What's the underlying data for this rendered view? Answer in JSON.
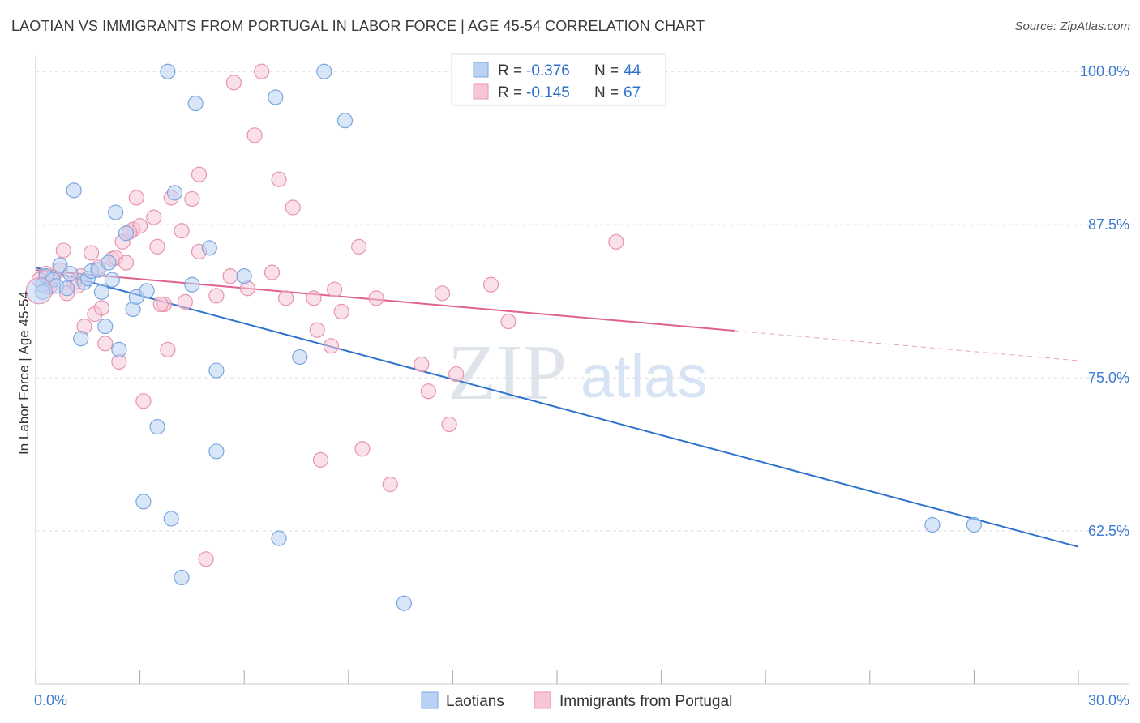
{
  "header": {
    "title": "LAOTIAN VS IMMIGRANTS FROM PORTUGAL IN LABOR FORCE | AGE 45-54 CORRELATION CHART",
    "source": "Source: ZipAtlas.com"
  },
  "watermark": {
    "zip": "ZIP",
    "atlas": "atlas"
  },
  "colors": {
    "blue_fill": "#b9d2f3",
    "blue_stroke": "#7aa6e0",
    "blue_line": "#2f72cc",
    "pink_fill": "#f6c6d5",
    "pink_stroke": "#e893b0",
    "pink_line": "#e0618f",
    "grid": "#dddddd",
    "tick_label": "#3d7bd0"
  },
  "chart_data": {
    "type": "scatter",
    "title": "LAOTIAN VS IMMIGRANTS FROM PORTUGAL IN LABOR FORCE | AGE 45-54 CORRELATION CHART",
    "ylabel": "In Labor Force | Age 45-54",
    "xlabel": "",
    "xlim": [
      0,
      30
    ],
    "ylim": [
      50,
      102
    ],
    "x_tick_labels": [
      "0.0%",
      "30.0%"
    ],
    "y_ticks": [
      62.5,
      75.0,
      87.5,
      100.0
    ],
    "y_tick_labels": [
      "62.5%",
      "75.0%",
      "87.5%",
      "100.0%"
    ],
    "grid": true,
    "legend_top": [
      {
        "r_label": "R =",
        "r_value": "-0.376",
        "n_label": "N =",
        "n_value": "44"
      },
      {
        "r_label": "R =",
        "r_value": "-0.145",
        "n_label": "N =",
        "n_value": "67"
      }
    ],
    "series": [
      {
        "name": "Laotians",
        "trend": {
          "x0": 0,
          "y0": 84.0,
          "x1": 30,
          "y1": 61.2,
          "solid_to": 30
        },
        "points": [
          [
            0.2,
            82.6
          ],
          [
            0.3,
            83.3
          ],
          [
            0.5,
            83.0
          ],
          [
            0.6,
            82.5
          ],
          [
            0.7,
            84.2
          ],
          [
            0.9,
            82.3
          ],
          [
            1.0,
            83.5
          ],
          [
            1.1,
            90.3
          ],
          [
            1.3,
            78.2
          ],
          [
            1.4,
            82.8
          ],
          [
            1.5,
            83.1
          ],
          [
            1.6,
            83.7
          ],
          [
            1.8,
            83.8
          ],
          [
            1.9,
            82.0
          ],
          [
            2.0,
            79.2
          ],
          [
            2.1,
            84.4
          ],
          [
            2.2,
            83.0
          ],
          [
            2.3,
            88.5
          ],
          [
            2.4,
            77.3
          ],
          [
            2.6,
            86.8
          ],
          [
            2.8,
            80.6
          ],
          [
            2.9,
            81.6
          ],
          [
            3.1,
            64.9
          ],
          [
            3.2,
            82.1
          ],
          [
            3.5,
            71.0
          ],
          [
            3.8,
            100.0
          ],
          [
            3.9,
            63.5
          ],
          [
            4.0,
            90.1
          ],
          [
            4.2,
            58.7
          ],
          [
            4.5,
            82.6
          ],
          [
            4.6,
            97.4
          ],
          [
            5.0,
            85.6
          ],
          [
            5.2,
            75.6
          ],
          [
            5.2,
            69.0
          ],
          [
            6.0,
            83.3
          ],
          [
            6.9,
            97.9
          ],
          [
            7.0,
            61.9
          ],
          [
            7.6,
            76.7
          ],
          [
            8.3,
            100.0
          ],
          [
            8.9,
            96.0
          ],
          [
            10.6,
            56.6
          ],
          [
            25.8,
            63.0
          ],
          [
            27.0,
            63.0
          ],
          [
            0.2,
            82.0
          ]
        ]
      },
      {
        "name": "Immigrants from Portugal",
        "trend": {
          "x0": 0,
          "y0": 83.8,
          "x1": 30,
          "y1": 76.4,
          "solid_to": 20.1
        },
        "points": [
          [
            0.3,
            83.5
          ],
          [
            0.5,
            83.2
          ],
          [
            0.7,
            83.8
          ],
          [
            0.8,
            85.4
          ],
          [
            0.9,
            81.9
          ],
          [
            1.1,
            82.8
          ],
          [
            1.3,
            83.3
          ],
          [
            1.4,
            79.2
          ],
          [
            1.6,
            85.2
          ],
          [
            1.7,
            80.2
          ],
          [
            1.8,
            84.0
          ],
          [
            1.9,
            80.7
          ],
          [
            2.0,
            77.8
          ],
          [
            2.2,
            84.7
          ],
          [
            2.3,
            84.8
          ],
          [
            2.4,
            76.3
          ],
          [
            2.5,
            86.1
          ],
          [
            2.6,
            84.4
          ],
          [
            2.8,
            87.1
          ],
          [
            2.9,
            89.7
          ],
          [
            3.0,
            87.4
          ],
          [
            3.1,
            73.1
          ],
          [
            3.4,
            88.1
          ],
          [
            3.5,
            85.7
          ],
          [
            3.7,
            81.0
          ],
          [
            3.8,
            77.3
          ],
          [
            3.9,
            89.7
          ],
          [
            4.2,
            87.0
          ],
          [
            4.3,
            81.2
          ],
          [
            4.5,
            89.6
          ],
          [
            4.7,
            85.3
          ],
          [
            4.7,
            91.6
          ],
          [
            4.9,
            60.2
          ],
          [
            5.2,
            81.7
          ],
          [
            5.6,
            83.3
          ],
          [
            5.7,
            99.1
          ],
          [
            6.1,
            82.3
          ],
          [
            6.3,
            94.8
          ],
          [
            6.5,
            100.0
          ],
          [
            6.8,
            83.6
          ],
          [
            7.0,
            91.2
          ],
          [
            7.2,
            81.5
          ],
          [
            7.4,
            88.9
          ],
          [
            8.0,
            81.5
          ],
          [
            8.1,
            78.9
          ],
          [
            8.2,
            68.3
          ],
          [
            8.5,
            77.6
          ],
          [
            8.6,
            82.2
          ],
          [
            8.8,
            80.4
          ],
          [
            9.4,
            69.2
          ],
          [
            9.3,
            85.7
          ],
          [
            9.8,
            81.5
          ],
          [
            10.2,
            66.3
          ],
          [
            11.1,
            76.1
          ],
          [
            11.3,
            73.9
          ],
          [
            11.7,
            81.9
          ],
          [
            11.9,
            71.2
          ],
          [
            12.1,
            75.3
          ],
          [
            13.1,
            82.6
          ],
          [
            13.6,
            79.6
          ],
          [
            14.0,
            100.0
          ],
          [
            16.7,
            86.1
          ],
          [
            0.1,
            83.0
          ],
          [
            0.4,
            82.4
          ],
          [
            1.2,
            82.5
          ],
          [
            2.7,
            86.9
          ],
          [
            3.6,
            81.0
          ]
        ]
      }
    ]
  },
  "legend_bottom": [
    {
      "label": "Laotians"
    },
    {
      "label": "Immigrants from Portugal"
    }
  ]
}
